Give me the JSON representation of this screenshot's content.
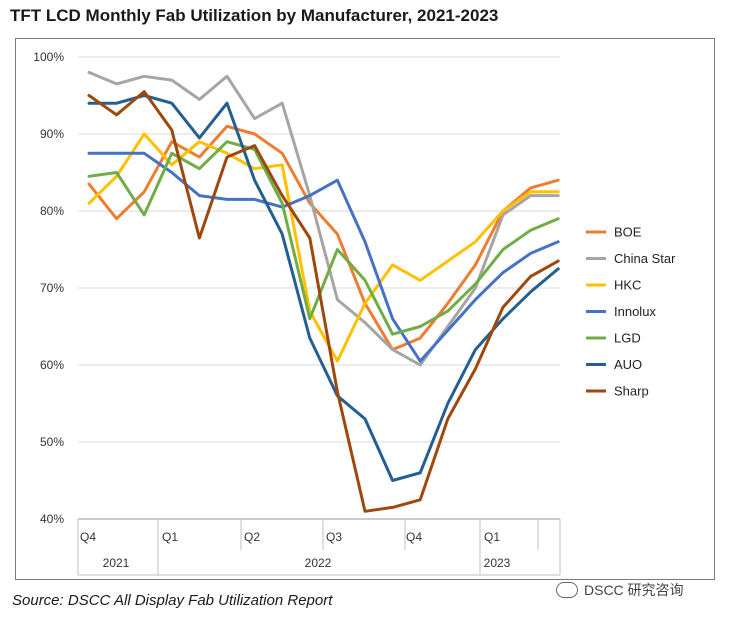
{
  "title": "TFT LCD Monthly Fab Utilization by Manufacturer, 2021-2023",
  "source": "Source: DSCC All Display Fab Utilization Report",
  "watermark": "DSCC 研究咨询",
  "chart_data": {
    "type": "line",
    "title": "TFT LCD Monthly Fab Utilization by Manufacturer, 2021-2023",
    "ylim": [
      40,
      100
    ],
    "yticks": [
      "40%",
      "50%",
      "60%",
      "70%",
      "80%",
      "90%",
      "100%"
    ],
    "ytick_values": [
      40,
      50,
      60,
      70,
      80,
      90,
      100
    ],
    "x": [
      "Oct-21",
      "Nov-21",
      "Dec-21",
      "Jan-22",
      "Feb-22",
      "Mar-22",
      "Apr-22",
      "May-22",
      "Jun-22",
      "Jul-22",
      "Aug-22",
      "Sep-22",
      "Oct-22",
      "Nov-22",
      "Dec-22",
      "Jan-23",
      "Feb-23",
      "Mar-23"
    ],
    "quarter_labels": [
      "Q4",
      "Q1",
      "Q2",
      "Q3",
      "Q4",
      "Q1"
    ],
    "year_labels": [
      "2021",
      "2022",
      "2023"
    ],
    "legend_position": "right",
    "series": [
      {
        "name": "BOE",
        "color": "#ED7D31",
        "values": [
          83.5,
          79,
          82.5,
          89,
          87,
          91,
          90,
          87.5,
          81,
          77,
          68,
          62,
          63.5,
          68,
          73,
          80,
          83,
          84
        ]
      },
      {
        "name": "China Star",
        "color": "#A5A5A5",
        "values": [
          98,
          96.5,
          97.5,
          97,
          94.5,
          97.5,
          92,
          94,
          82,
          68.5,
          65.5,
          62,
          60,
          65,
          70,
          79.5,
          82,
          82
        ]
      },
      {
        "name": "HKC",
        "color": "#FFC000",
        "values": [
          81,
          84.5,
          90,
          86,
          89,
          87.5,
          85.5,
          86,
          67,
          60.5,
          68,
          73,
          71,
          73.5,
          76,
          80,
          82.5,
          82.5
        ]
      },
      {
        "name": "Innolux",
        "color": "#4472C4",
        "values": [
          87.5,
          87.5,
          87.5,
          85,
          82,
          81.5,
          81.5,
          80.5,
          82,
          84,
          76,
          66,
          60.5,
          64.5,
          68.5,
          72,
          74.5,
          76
        ]
      },
      {
        "name": "LGD",
        "color": "#70AD47",
        "values": [
          84.5,
          85,
          79.5,
          87.5,
          85.5,
          89,
          88,
          81,
          66,
          75,
          71,
          64,
          65,
          67,
          70.5,
          75,
          77.5,
          79
        ]
      },
      {
        "name": "AUO",
        "color": "#255E91",
        "values": [
          94,
          94,
          95,
          94,
          89.5,
          94,
          84,
          77,
          63.5,
          56,
          53,
          45,
          46,
          55,
          62,
          66,
          69.5,
          72.5
        ]
      },
      {
        "name": "Sharp",
        "color": "#9E480E",
        "values": [
          95,
          92.5,
          95.5,
          90.5,
          76.5,
          87,
          88.5,
          82,
          76.5,
          56.5,
          41,
          41.5,
          42.5,
          53,
          59.5,
          67.5,
          71.5,
          73.5
        ]
      }
    ]
  }
}
